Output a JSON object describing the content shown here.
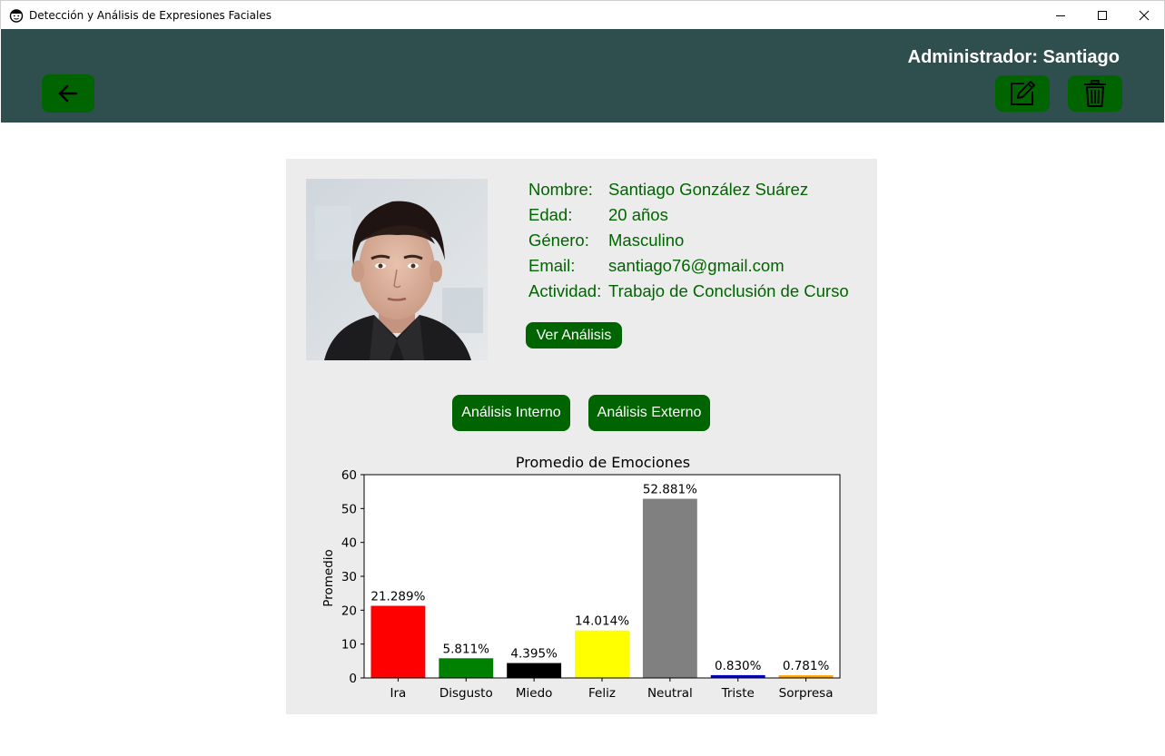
{
  "window": {
    "title": "Detección y Análisis de Expresiones Faciales",
    "app_icon": "face-icon"
  },
  "header": {
    "admin_label": "Administrador: Santiago",
    "back_icon": "arrow-left-icon",
    "edit_icon": "edit-icon",
    "delete_icon": "trash-icon",
    "background_color": "#2f4f4f",
    "button_color": "#006400"
  },
  "profile": {
    "fields": [
      {
        "label": "Nombre:",
        "value": "Santiago González Suárez"
      },
      {
        "label": "Edad:",
        "value": "20 años"
      },
      {
        "label": "Género:",
        "value": "Masculino"
      },
      {
        "label": "Email:",
        "value": "santiago76@gmail.com"
      },
      {
        "label": "Actividad:",
        "value": "Trabajo de Conclusión de Curso"
      }
    ],
    "ver_analisis_label": "Ver Análisis",
    "text_color": "#006400"
  },
  "analysis_buttons": {
    "internal_label": "Análisis Interno",
    "external_label": "Análisis Externo"
  },
  "chart_data": {
    "type": "bar",
    "title": "Promedio de Emociones",
    "xlabel": "",
    "ylabel": "Promedio",
    "ylim": [
      0,
      60
    ],
    "yticks": [
      0,
      10,
      20,
      30,
      40,
      50,
      60
    ],
    "categories": [
      "Ira",
      "Disgusto",
      "Miedo",
      "Feliz",
      "Neutral",
      "Triste",
      "Sorpresa"
    ],
    "values": [
      21.289,
      5.811,
      4.395,
      14.014,
      52.881,
      0.83,
      0.781
    ],
    "value_labels": [
      "21.289%",
      "5.811%",
      "4.395%",
      "14.014%",
      "52.881%",
      "0.830%",
      "0.781%"
    ],
    "colors": [
      "#ff0000",
      "#008000",
      "#000000",
      "#ffff00",
      "#808080",
      "#0000cd",
      "#ffa500"
    ],
    "grid": false
  }
}
